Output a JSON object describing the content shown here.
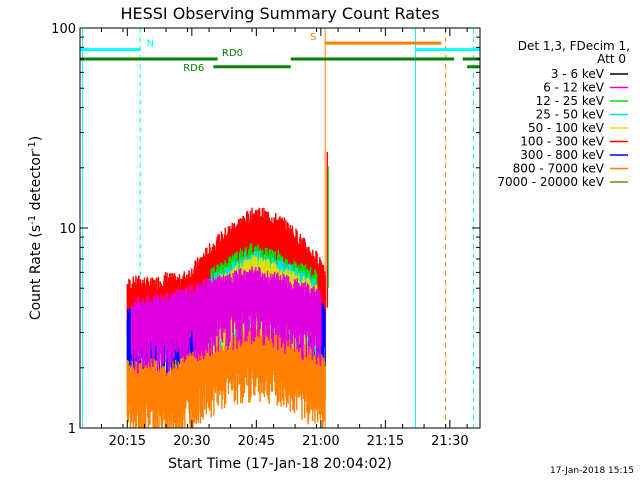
{
  "chart_data": {
    "type": "line",
    "title": "HESSI Observing Summary Count Rates",
    "xlabel": "Start Time (17-Jan-18 20:04:02)",
    "ylabel": "Count Rate (s",
    "ylabel_sup1": "-1",
    "ylabel_mid": " detector",
    "ylabel_sup2": "-1",
    "ylabel_end": ")",
    "yscale": "log",
    "ylim": [
      1,
      100
    ],
    "xlim_minutes": [
      0,
      93
    ],
    "x_ticks": [
      {
        "label": "20:15",
        "minutes": 11
      },
      {
        "label": "20:30",
        "minutes": 26
      },
      {
        "label": "20:45",
        "minutes": 41
      },
      {
        "label": "21:00",
        "minutes": 56
      },
      {
        "label": "21:15",
        "minutes": 71
      },
      {
        "label": "21:30",
        "minutes": 86
      }
    ],
    "y_ticks": [
      {
        "label": "1",
        "value": 1
      },
      {
        "label": "10",
        "value": 10
      },
      {
        "label": "100",
        "value": 100
      }
    ],
    "legend": {
      "header1": "Det 1,3, FDecim 1,",
      "header2": "Att 0",
      "entries": [
        {
          "label": "3 - 6 keV",
          "color": "#000000"
        },
        {
          "label": "6 - 12 keV",
          "color": "#e000e0"
        },
        {
          "label": "12 - 25 keV",
          "color": "#00e000"
        },
        {
          "label": "25 - 50 keV",
          "color": "#00e0e0"
        },
        {
          "label": "50 - 100 keV",
          "color": "#e0e000"
        },
        {
          "label": "100 - 300 keV",
          "color": "#ff0000"
        },
        {
          "label": "300 - 800 keV",
          "color": "#0000ff"
        },
        {
          "label": "800 - 7000 keV",
          "color": "#ff8000"
        },
        {
          "label": "7000 - 20000 keV",
          "color": "#808000"
        }
      ]
    },
    "series": [
      {
        "name": "100 - 300 keV",
        "color": "#ff0000",
        "x": [
          11,
          14,
          17,
          20,
          23,
          26,
          29,
          32,
          35,
          38,
          41,
          44,
          47,
          50,
          53,
          56,
          57
        ],
        "values": [
          5,
          5.2,
          5,
          5.4,
          5.2,
          5.8,
          7,
          8.2,
          9.5,
          10.5,
          11.5,
          11,
          10.2,
          9,
          7.5,
          6.5,
          6
        ]
      },
      {
        "name": "300 - 800 keV",
        "color": "#0000ff",
        "x": [
          11,
          14,
          17,
          20,
          23,
          26,
          29,
          32,
          35,
          38,
          41,
          44,
          47,
          50,
          53,
          56,
          57
        ],
        "values": [
          3.5,
          3.6,
          3.4,
          3.7,
          3.6,
          4,
          4.5,
          5,
          5.5,
          6,
          6.2,
          6,
          5.6,
          5,
          4.4,
          4,
          3.8
        ]
      },
      {
        "name": "800 - 7000 keV",
        "color": "#ff8000",
        "x": [
          11,
          14,
          17,
          20,
          23,
          26,
          29,
          32,
          35,
          38,
          41,
          44,
          47,
          50,
          53,
          56,
          57
        ],
        "values": [
          2,
          1.9,
          2,
          1.8,
          2,
          2.2,
          2.4,
          2.6,
          2.8,
          2.9,
          3,
          2.9,
          2.7,
          2.5,
          2.3,
          2.1,
          2
        ]
      },
      {
        "name": "12 - 25 keV",
        "color": "#00e000",
        "x": [
          30,
          35,
          40,
          45,
          50,
          55
        ],
        "values": [
          5.5,
          6.5,
          7.5,
          7,
          6.2,
          5.5
        ]
      },
      {
        "name": "25 - 50 keV",
        "color": "#00e0e0",
        "x": [
          30,
          35,
          40,
          45,
          50,
          55
        ],
        "values": [
          5,
          6,
          7,
          6.5,
          5.8,
          5
        ]
      },
      {
        "name": "50 - 100 keV",
        "color": "#e0e000",
        "x": [
          30,
          35,
          40,
          45,
          50,
          55
        ],
        "values": [
          4.8,
          5.6,
          6.5,
          6.1,
          5.4,
          4.8
        ]
      },
      {
        "name": "6 - 12 keV",
        "color": "#e000e0",
        "x": [
          12,
          20,
          30,
          40,
          50,
          56
        ],
        "values": [
          4,
          4.2,
          5,
          5.8,
          5,
          4.5
        ]
      }
    ],
    "spike": {
      "minutes": 57.5,
      "value": 24
    },
    "flags": [
      {
        "name": "N",
        "color": "#00ffff",
        "level": 78,
        "segments": [
          [
            0,
            14
          ],
          [
            78,
            93
          ]
        ],
        "label_at": 15.5
      },
      {
        "name": "S",
        "color": "#ff8000",
        "level": 84,
        "segments": [
          [
            57,
            84
          ]
        ],
        "label_at": 53.5
      },
      {
        "name": "RD0",
        "color": "#008000",
        "level": 70,
        "segments": [
          [
            0,
            32
          ],
          [
            49,
            87
          ],
          [
            89,
            93
          ]
        ],
        "label_at": 33
      },
      {
        "name": "RD6",
        "color": "#008000",
        "level": 64,
        "segments": [
          [
            31,
            49
          ],
          [
            90,
            93
          ]
        ],
        "label_at": 24
      }
    ],
    "vlines": [
      {
        "minutes": 14,
        "color": "#00ffff",
        "dashed": true
      },
      {
        "minutes": 0.6,
        "color": "#00ffff",
        "dashed": false
      },
      {
        "minutes": 78,
        "color": "#00ffff",
        "dashed": false
      },
      {
        "minutes": 91.5,
        "color": "#00ffff",
        "dashed": true
      },
      {
        "minutes": 57,
        "color": "#ff8000",
        "dashed": false
      },
      {
        "minutes": 85,
        "color": "#ff8000",
        "dashed": true
      }
    ],
    "timestamp": "17-Jan-2018 15:15"
  }
}
